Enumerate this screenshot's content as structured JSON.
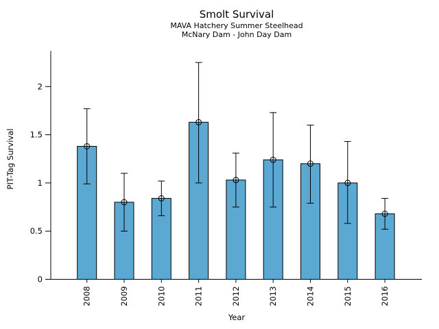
{
  "chart_data": {
    "type": "bar",
    "title": "Smolt Survival",
    "subtitle": [
      "MAVA Hatchery Summer Steelhead",
      "McNary Dam - John Day Dam"
    ],
    "xlabel": "Year",
    "ylabel": "PIT-Tag Survival",
    "categories": [
      "2008",
      "2009",
      "2010",
      "2011",
      "2012",
      "2013",
      "2014",
      "2015",
      "2016"
    ],
    "values": [
      1.38,
      0.8,
      0.84,
      1.63,
      1.03,
      1.24,
      1.2,
      1.0,
      0.68
    ],
    "error_low": [
      0.99,
      0.5,
      0.66,
      1.0,
      0.75,
      0.75,
      0.79,
      0.58,
      0.52
    ],
    "error_high": [
      1.77,
      1.1,
      1.02,
      2.25,
      1.31,
      1.73,
      1.6,
      1.43,
      0.84
    ],
    "ylim": [
      0,
      2.37
    ],
    "yticks": [
      0,
      0.5,
      1,
      1.5,
      2
    ],
    "ytick_labels": [
      "0",
      "0.5",
      "1",
      "1.5",
      "2"
    ],
    "grid": false,
    "legend": null,
    "marker": "open-circle-icon",
    "bar_color": "#5BA8D3",
    "bar_edge_color": "#000000",
    "error_color": "#000000",
    "text_color": "#000000",
    "background_color": "#FFFFFF"
  }
}
